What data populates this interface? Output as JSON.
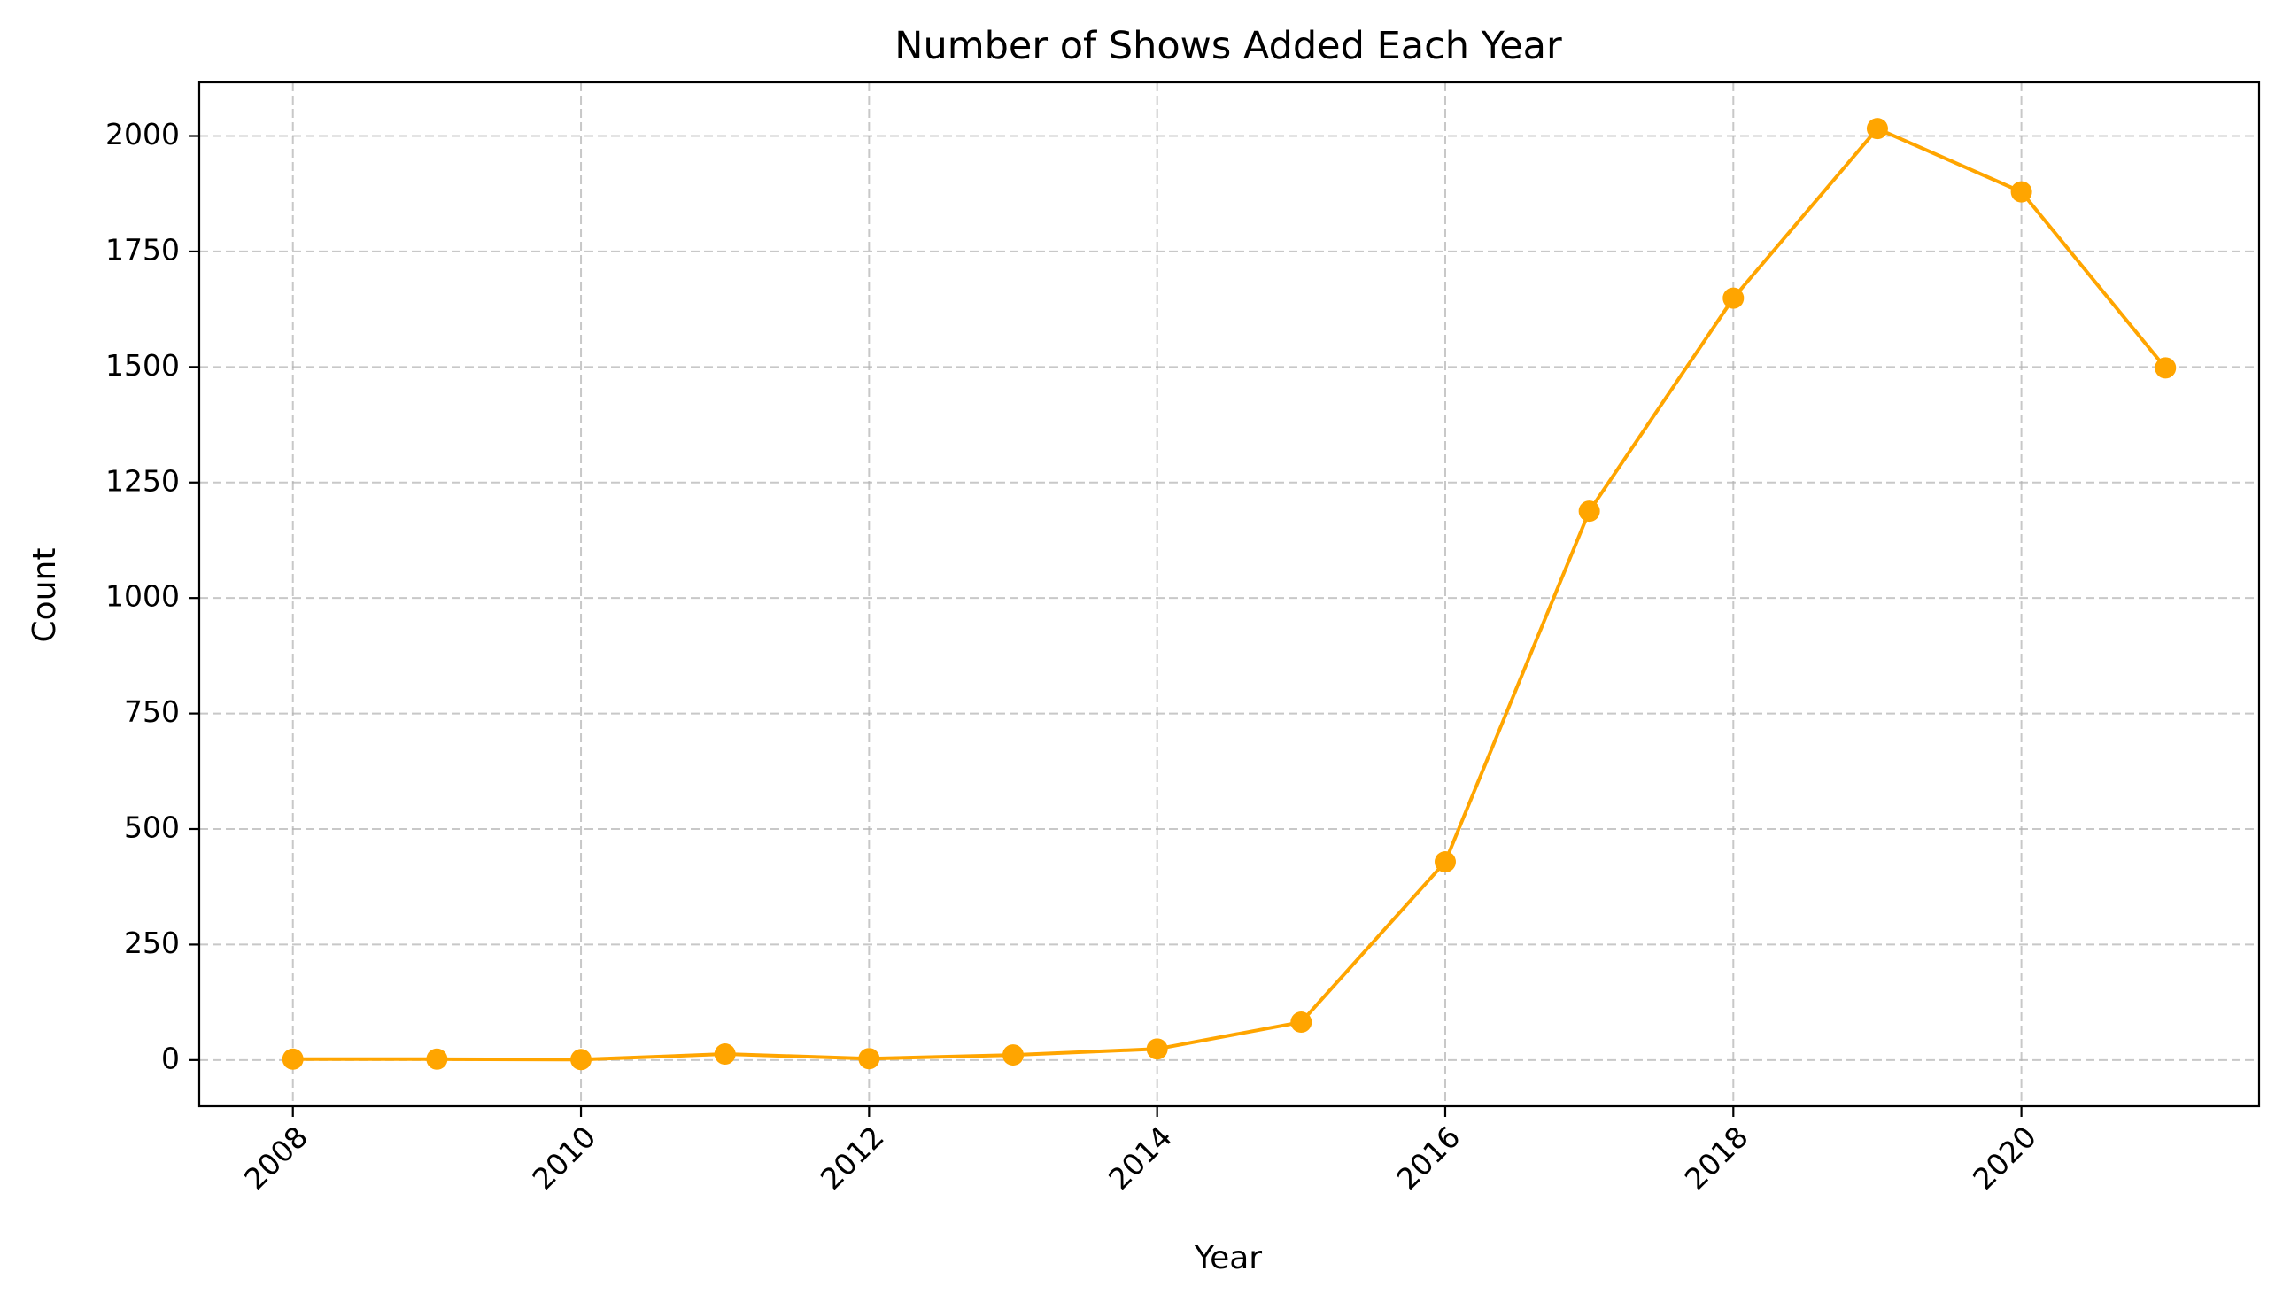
{
  "chart_data": {
    "type": "line",
    "title": "Number of Shows Added Each Year",
    "xlabel": "Year",
    "ylabel": "Count",
    "x": [
      2008,
      2009,
      2010,
      2011,
      2012,
      2013,
      2014,
      2015,
      2016,
      2017,
      2018,
      2019,
      2020,
      2021
    ],
    "series": [
      {
        "name": "",
        "values": [
          2,
          2,
          1,
          13,
          3,
          11,
          24,
          82,
          429,
          1188,
          1649,
          2016,
          1879,
          1498
        ],
        "color": "#ffa500",
        "marker": "circle"
      }
    ],
    "xlim": [
      2007.35,
      2021.65
    ],
    "ylim": [
      -100,
      2116
    ],
    "xticks": [
      2008,
      2010,
      2012,
      2014,
      2016,
      2018,
      2020
    ],
    "xtick_labels": [
      "2008",
      "2010",
      "2012",
      "2014",
      "2016",
      "2018",
      "2020"
    ],
    "xtick_rotation": "45 degrees",
    "yticks": [
      0,
      250,
      500,
      750,
      1000,
      1250,
      1500,
      1750,
      2000
    ],
    "ytick_labels": [
      "0",
      "250",
      "500",
      "750",
      "1000",
      "1250",
      "1500",
      "1750",
      "2000"
    ],
    "grid": "on, dashed, light gray",
    "legend": "none"
  }
}
